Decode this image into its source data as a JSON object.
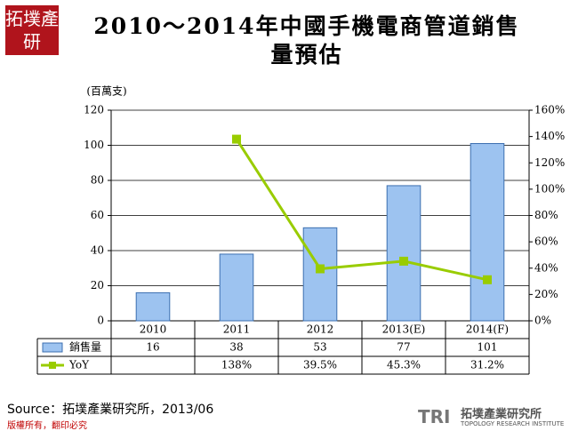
{
  "header": {
    "logo": "拓墣產研",
    "title": "2010～2014年中國手機電商管道銷售量預估"
  },
  "chart_data": {
    "type": "bar",
    "y_unit": "(百萬支)",
    "categories": [
      "2010",
      "2011",
      "2012",
      "2013(E)",
      "2014(F)"
    ],
    "series": [
      {
        "name": "銷售量",
        "type": "bar",
        "color": "#9dc3f0",
        "values": [
          16,
          38,
          53,
          77,
          101
        ]
      },
      {
        "name": "YoY",
        "type": "line",
        "axis": "y2",
        "color": "#99cc00",
        "values": [
          null,
          138,
          39.5,
          45.3,
          31.2
        ],
        "value_labels": [
          null,
          "138%",
          "39.5%",
          "45.3%",
          "31.2%"
        ]
      }
    ],
    "ylim": [
      0,
      120
    ],
    "yticks": [
      0,
      20,
      40,
      60,
      80,
      100,
      120
    ],
    "y2lim": [
      0,
      160
    ],
    "y2ticks": [
      {
        "value": 0,
        "label": "0%"
      },
      {
        "value": 20,
        "label": "20%"
      },
      {
        "value": 40,
        "label": "40%"
      },
      {
        "value": 60,
        "label": "60%"
      },
      {
        "value": 80,
        "label": "80%"
      },
      {
        "value": 100,
        "label": "100%"
      },
      {
        "value": 120,
        "label": "120%"
      },
      {
        "value": 140,
        "label": "140%"
      },
      {
        "value": 160,
        "label": "160%"
      }
    ],
    "grid": true
  },
  "footer": {
    "source": "Source：拓墣產業研究所，2013/06",
    "copyright": "版權所有，翻印必究",
    "brand": "TRI",
    "brand_cn": "拓墣產業研究所",
    "brand_en": "TOPOLOGY RESEARCH INSTITUTE"
  }
}
